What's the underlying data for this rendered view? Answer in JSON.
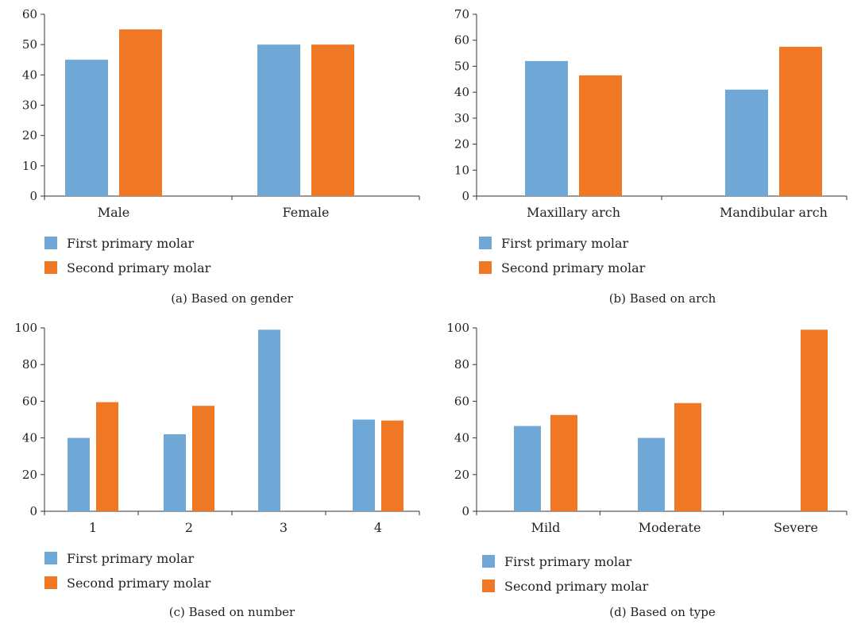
{
  "colors": {
    "first": "#6fa7d6",
    "second": "#f07723"
  },
  "legend": [
    "First primary molar",
    "Second primary molar"
  ],
  "chart_data": [
    {
      "type": "bar",
      "caption": "(a) Based on gender",
      "categories": [
        "Male",
        "Female"
      ],
      "ylim": [
        0,
        60
      ],
      "yticks": [
        0,
        10,
        20,
        30,
        40,
        50,
        60
      ],
      "series": [
        {
          "name": "First primary molar",
          "values": [
            45,
            50
          ]
        },
        {
          "name": "Second primary molar",
          "values": [
            55,
            50
          ]
        }
      ],
      "legend_position": "bottom-left"
    },
    {
      "type": "bar",
      "caption": "(b) Based on arch",
      "categories": [
        "Maxillary arch",
        "Mandibular arch"
      ],
      "ylim": [
        0,
        70
      ],
      "yticks": [
        0,
        10,
        20,
        30,
        40,
        50,
        60,
        70
      ],
      "series": [
        {
          "name": "First primary molar",
          "values": [
            52,
            41
          ]
        },
        {
          "name": "Second primary molar",
          "values": [
            46.5,
            57.5
          ]
        }
      ],
      "legend_position": "bottom-left"
    },
    {
      "type": "bar",
      "caption": "(c) Based on number",
      "categories": [
        "1",
        "2",
        "3",
        "4"
      ],
      "ylim": [
        0,
        100
      ],
      "yticks": [
        0,
        20,
        40,
        60,
        80,
        100
      ],
      "series": [
        {
          "name": "First primary molar",
          "values": [
            40,
            42,
            99,
            50
          ]
        },
        {
          "name": "Second primary molar",
          "values": [
            59.5,
            57.5,
            0,
            49.5
          ]
        }
      ],
      "legend_position": "bottom-left"
    },
    {
      "type": "bar",
      "caption": "(d) Based on type",
      "categories": [
        "Mild",
        "Moderate",
        "Severe"
      ],
      "ylim": [
        0,
        100
      ],
      "yticks": [
        0,
        20,
        40,
        60,
        80,
        100
      ],
      "series": [
        {
          "name": "First primary molar",
          "values": [
            46.5,
            40,
            0
          ]
        },
        {
          "name": "Second primary molar",
          "values": [
            52.5,
            59,
            99
          ]
        }
      ],
      "legend_position": "bottom-left"
    }
  ]
}
